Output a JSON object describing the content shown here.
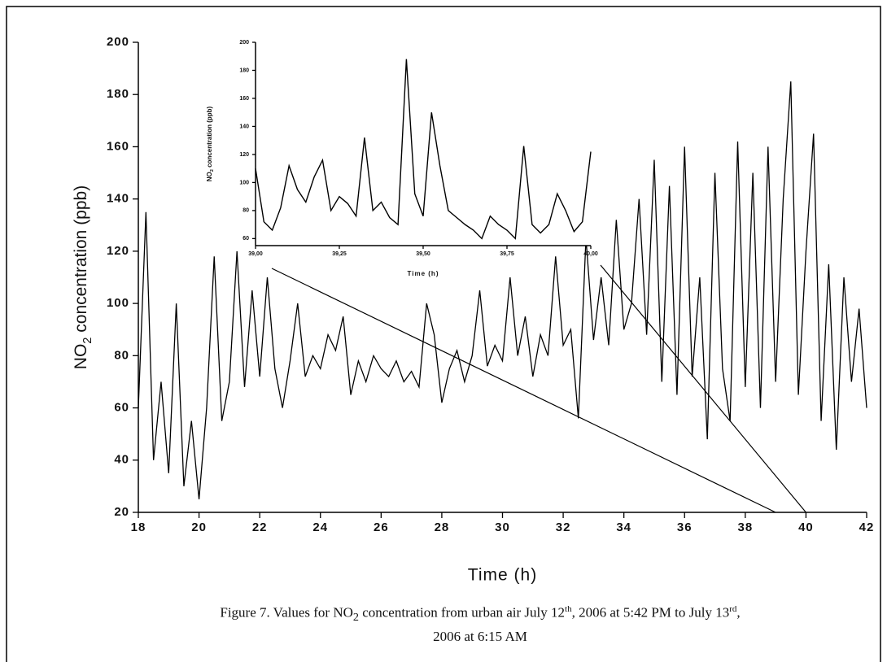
{
  "chart_data": [
    {
      "type": "line",
      "color": "#000000",
      "x_label": "Time (h)",
      "y_label_parts": [
        "NO",
        "2",
        " concentration (ppb)"
      ],
      "xlim": [
        18,
        42
      ],
      "xticks": [
        18,
        20,
        22,
        24,
        26,
        28,
        30,
        32,
        34,
        36,
        38,
        40,
        42
      ],
      "ylim": [
        20,
        200
      ],
      "yticks": [
        20,
        40,
        60,
        80,
        100,
        120,
        140,
        160,
        180,
        200
      ],
      "x": [
        18,
        18.25,
        18.5,
        18.75,
        19,
        19.25,
        19.5,
        19.75,
        20,
        20.25,
        20.5,
        20.75,
        21,
        21.25,
        21.5,
        21.75,
        22,
        22.25,
        22.5,
        22.75,
        23,
        23.25,
        23.5,
        23.75,
        24,
        24.25,
        24.5,
        24.75,
        25,
        25.25,
        25.5,
        25.75,
        26,
        26.25,
        26.5,
        26.75,
        27,
        27.25,
        27.5,
        27.75,
        28,
        28.25,
        28.5,
        28.75,
        29,
        29.25,
        29.5,
        29.75,
        30,
        30.25,
        30.5,
        30.75,
        31,
        31.25,
        31.5,
        31.75,
        32,
        32.25,
        32.5,
        32.75,
        33,
        33.25,
        33.5,
        33.75,
        34,
        34.25,
        34.5,
        34.75,
        35,
        35.25,
        35.5,
        35.75,
        36,
        36.25,
        36.5,
        36.75,
        37,
        37.25,
        37.5,
        37.75,
        38,
        38.25,
        38.5,
        38.75,
        39,
        39.25,
        39.5,
        39.75,
        40,
        40.25,
        40.5,
        40.75,
        41,
        41.25,
        41.5,
        41.75,
        42
      ],
      "values": [
        60,
        135,
        40,
        70,
        35,
        100,
        30,
        55,
        25,
        60,
        118,
        55,
        70,
        120,
        68,
        105,
        72,
        110,
        75,
        60,
        78,
        100,
        72,
        80,
        75,
        88,
        82,
        95,
        65,
        78,
        70,
        80,
        75,
        72,
        78,
        70,
        74,
        68,
        100,
        88,
        62,
        75,
        82,
        70,
        80,
        105,
        76,
        84,
        78,
        110,
        80,
        95,
        72,
        88,
        80,
        118,
        84,
        90,
        56,
        125,
        86,
        110,
        84,
        132,
        90,
        100,
        140,
        88,
        155,
        70,
        145,
        65,
        160,
        72,
        110,
        48,
        150,
        75,
        55,
        162,
        68,
        150,
        60,
        160,
        70,
        140,
        185,
        65,
        120,
        165,
        55,
        115,
        44,
        110,
        70,
        98,
        60
      ]
    },
    {
      "type": "line",
      "color": "#000000",
      "x_label": "Time (h)",
      "y_label_parts": [
        "NO",
        "2",
        " concentration (ppb)"
      ],
      "xlim": [
        39,
        40
      ],
      "xticks": [
        {
          "value": 39,
          "label": "39,00"
        },
        {
          "value": 39.25,
          "label": "39,25"
        },
        {
          "value": 39.5,
          "label": "39,50"
        },
        {
          "value": 39.75,
          "label": "39,75"
        },
        {
          "value": 40,
          "label": "40,00"
        }
      ],
      "ylim": [
        55,
        200
      ],
      "yticks": [
        60,
        80,
        100,
        120,
        140,
        160,
        180,
        200
      ],
      "x": [
        39,
        39.025,
        39.05,
        39.075,
        39.1,
        39.125,
        39.15,
        39.175,
        39.2,
        39.225,
        39.25,
        39.275,
        39.3,
        39.325,
        39.35,
        39.375,
        39.4,
        39.425,
        39.45,
        39.475,
        39.5,
        39.525,
        39.55,
        39.575,
        39.6,
        39.625,
        39.65,
        39.675,
        39.7,
        39.725,
        39.75,
        39.775,
        39.8,
        39.825,
        39.85,
        39.875,
        39.9,
        39.925,
        39.95,
        39.975,
        40
      ],
      "values": [
        110,
        72,
        66,
        82,
        112,
        95,
        86,
        104,
        116,
        80,
        90,
        85,
        76,
        132,
        80,
        86,
        75,
        70,
        188,
        92,
        76,
        150,
        112,
        80,
        75,
        70,
        66,
        60,
        76,
        70,
        66,
        60,
        126,
        70,
        64,
        70,
        92,
        80,
        65,
        72,
        122
      ]
    }
  ],
  "caption": {
    "line1_parts": [
      "Figure 7. Values for NO",
      "2",
      " concentration from urban air July 12",
      "th",
      ", 2006 at 5:42 PM to July 13",
      "rd",
      ","
    ],
    "line2": "2006 at 6:15 AM"
  }
}
